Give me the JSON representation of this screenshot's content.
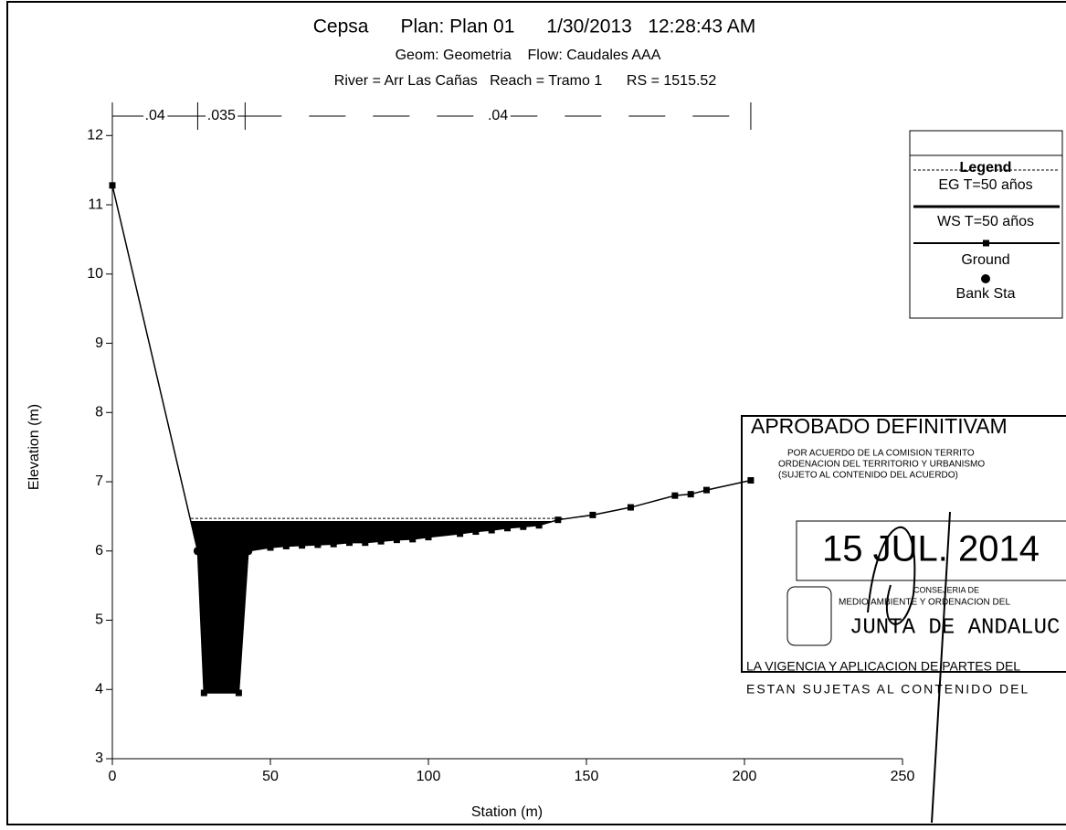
{
  "chart_data": {
    "type": "cross-section",
    "title": "Cepsa      Plan: Plan 01      1/30/2013   12:28:43 AM",
    "subtitle": "Geom: Geometria    Flow: Caudales AAA",
    "subtitle2": "River = Arr Las Cañas   Reach = Tramo 1      RS = 1515.52",
    "xlabel": "Station (m)",
    "ylabel": "Elevation (m)",
    "xlim": [
      0,
      250
    ],
    "ylim": [
      3,
      12.4
    ],
    "xticks": [
      0,
      50,
      100,
      150,
      200,
      250
    ],
    "yticks": [
      3,
      4,
      5,
      6,
      7,
      8,
      9,
      10,
      11,
      12
    ],
    "n_stations": [
      0,
      27,
      42,
      202
    ],
    "n_values": [
      {
        "value": 0.04,
        "label": ".04"
      },
      {
        "value": 0.035,
        "label": ".035"
      },
      {
        "value": 0.04,
        "label": ".04"
      }
    ],
    "legend_title": "Legend",
    "series": [
      {
        "name": "EG T=50 años",
        "color": "#000000",
        "values": [
          6.47
        ]
      },
      {
        "name": "WS T=50 años",
        "color": "#000000",
        "values": [
          6.42
        ]
      },
      {
        "name": "Ground",
        "color": "#000000",
        "x": [
          0,
          27,
          29,
          40,
          43,
          50,
          55,
          60,
          65,
          70,
          75,
          80,
          85,
          90,
          95,
          100,
          110,
          115,
          120,
          125,
          130,
          135,
          141,
          152,
          164,
          178,
          183,
          188,
          202
        ],
        "values": [
          11.28,
          6.0,
          3.95,
          3.95,
          6.0,
          6.05,
          6.07,
          6.08,
          6.09,
          6.1,
          6.12,
          6.12,
          6.14,
          6.16,
          6.17,
          6.2,
          6.25,
          6.28,
          6.3,
          6.33,
          6.35,
          6.37,
          6.45,
          6.52,
          6.63,
          6.8,
          6.82,
          6.88,
          7.02
        ]
      },
      {
        "name": "Bank Sta",
        "color": "#000000",
        "x": [
          27,
          43
        ],
        "values": [
          6.0,
          6.0
        ]
      }
    ],
    "stamp": [
      "APROBADO DEFINITIVAM",
      "POR ACUERDO DE LA COMISION TERRITO",
      "ORDENACION DEL TERRITORIO Y URBANISMO",
      "(SUJETO AL CONTENIDO DEL ACUERDO)",
      "15 JUL. 2014",
      "CONSEJERIA DE",
      "MEDIO AMBIENTE Y ORDENACION DEL",
      "JUNTA DE ANDALUC",
      "LA VIGENCIA Y APLICACION DE PARTES DEL",
      "ESTAN SUJETAS AL CONTENIDO DEL"
    ]
  }
}
